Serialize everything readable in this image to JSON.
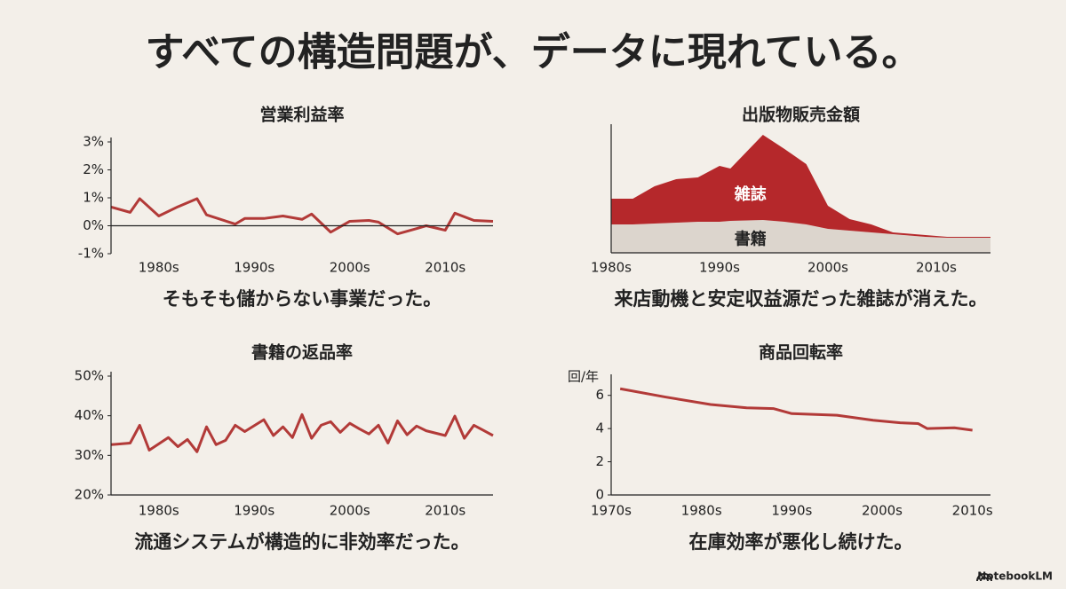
{
  "title": "すべての構造問題が、データに現れている。",
  "footer": "NotebookLM",
  "chart_data": [
    {
      "type": "line",
      "title": "営業利益率",
      "caption": "そもそも儲からない事業だった。",
      "color": "#b23a38",
      "x": [
        1975,
        1977,
        1978,
        1980,
        1982,
        1984,
        1985,
        1988,
        1989,
        1991,
        1993,
        1995,
        1996,
        1998,
        2000,
        2002,
        2003,
        2005,
        2007,
        2008,
        2010,
        2011,
        2013,
        2015
      ],
      "values": [
        0.67,
        0.48,
        0.97,
        0.35,
        0.68,
        0.97,
        0.39,
        0.06,
        0.26,
        0.26,
        0.35,
        0.23,
        0.42,
        -0.23,
        0.16,
        0.19,
        0.13,
        -0.29,
        -0.1,
        0,
        -0.16,
        0.45,
        0.19,
        0.16
      ],
      "xlim": [
        1975,
        2015
      ],
      "xticks": [
        {
          "value": 1980,
          "label": "1980s"
        },
        {
          "value": 1990,
          "label": "1990s"
        },
        {
          "value": 2000,
          "label": "2000s"
        },
        {
          "value": 2010,
          "label": "2010s"
        }
      ],
      "ylim": [
        -1,
        3
      ],
      "yticks": [
        {
          "value": -1,
          "label": "-1%"
        },
        {
          "value": 0,
          "label": "0%"
        },
        {
          "value": 1,
          "label": "1%"
        },
        {
          "value": 2,
          "label": "2%"
        },
        {
          "value": 3,
          "label": "3%"
        }
      ]
    },
    {
      "type": "area",
      "title": "出版物販売金額",
      "caption": "来店動機と安定収益源だった雑誌が消えた。",
      "stacked": true,
      "x": [
        1980,
        1982,
        1984,
        1986,
        1988,
        1990,
        1991,
        1994,
        1996,
        1998,
        2000,
        2002,
        2004,
        2006,
        2009,
        2011,
        2015
      ],
      "series": [
        {
          "name": "書籍",
          "color": "#dcd5cd",
          "values": [
            32,
            32,
            33,
            34,
            35,
            35,
            36,
            37,
            35,
            32,
            27,
            25,
            23,
            21,
            18,
            17,
            17
          ]
        },
        {
          "name": "雑誌",
          "color": "#b5282b",
          "values": [
            29,
            29,
            42,
            49,
            50,
            63,
            59,
            96,
            82,
            68,
            26,
            13,
            9,
            2,
            2,
            1,
            1
          ]
        }
      ],
      "xlim": [
        1980,
        2015
      ],
      "xticks": [
        {
          "value": 1980,
          "label": "1980s"
        },
        {
          "value": 1990,
          "label": "1990s"
        },
        {
          "value": 2000,
          "label": "2000s"
        },
        {
          "value": 2010,
          "label": "2010s"
        }
      ],
      "ylim": [
        0,
        140
      ]
    },
    {
      "type": "line",
      "title": "書籍の返品率",
      "caption": "流通システムが構造的に非効率だった。",
      "color": "#b23a38",
      "x": [
        1975,
        1977,
        1978,
        1979,
        1981,
        1982,
        1983,
        1984,
        1985,
        1986,
        1987,
        1988,
        1989,
        1991,
        1992,
        1993,
        1994,
        1995,
        1996,
        1997,
        1998,
        1999,
        2000,
        2001,
        2002,
        2003,
        2004,
        2005,
        2006,
        2007,
        2008,
        2010,
        2011,
        2012,
        2013,
        2014,
        2015
      ],
      "values": [
        32.7,
        33.1,
        37.6,
        31.3,
        34.5,
        32.2,
        34,
        30.9,
        37.2,
        32.7,
        33.8,
        37.6,
        36,
        39,
        35,
        37.2,
        34.5,
        40.3,
        34.3,
        37.6,
        38.5,
        35.8,
        38.1,
        36.7,
        35.4,
        37.6,
        33.1,
        38.7,
        35.2,
        37.4,
        36.2,
        35,
        39.9,
        34.3,
        37.6,
        36.3,
        35
      ],
      "xlim": [
        1975,
        2015
      ],
      "xticks": [
        {
          "value": 1980,
          "label": "1980s"
        },
        {
          "value": 1990,
          "label": "1990s"
        },
        {
          "value": 2000,
          "label": "2000s"
        },
        {
          "value": 2010,
          "label": "2010s"
        }
      ],
      "ylim": [
        20,
        50
      ],
      "yticks": [
        {
          "value": 20,
          "label": "20%"
        },
        {
          "value": 30,
          "label": "30%"
        },
        {
          "value": 40,
          "label": "40%"
        },
        {
          "value": 50,
          "label": "50%"
        }
      ]
    },
    {
      "type": "line",
      "title": "商品回転率",
      "caption": "在庫効率が悪化し続けた。",
      "color": "#b23a38",
      "y_label": "回/年",
      "x": [
        1971,
        1976,
        1981,
        1985,
        1988,
        1990,
        1995,
        1999,
        2002,
        2004,
        2005,
        2008,
        2010
      ],
      "values": [
        6.4,
        5.9,
        5.45,
        5.25,
        5.2,
        4.9,
        4.8,
        4.5,
        4.35,
        4.3,
        4.0,
        4.05,
        3.9
      ],
      "xlim": [
        1970,
        2012
      ],
      "xticks": [
        {
          "value": 1970,
          "label": "1970s"
        },
        {
          "value": 1980,
          "label": "1980s"
        },
        {
          "value": 1990,
          "label": "1990s"
        },
        {
          "value": 2000,
          "label": "2000s"
        },
        {
          "value": 2010,
          "label": "2010s"
        }
      ],
      "ylim": [
        0,
        7
      ],
      "yticks": [
        0,
        2,
        4,
        6
      ]
    }
  ]
}
